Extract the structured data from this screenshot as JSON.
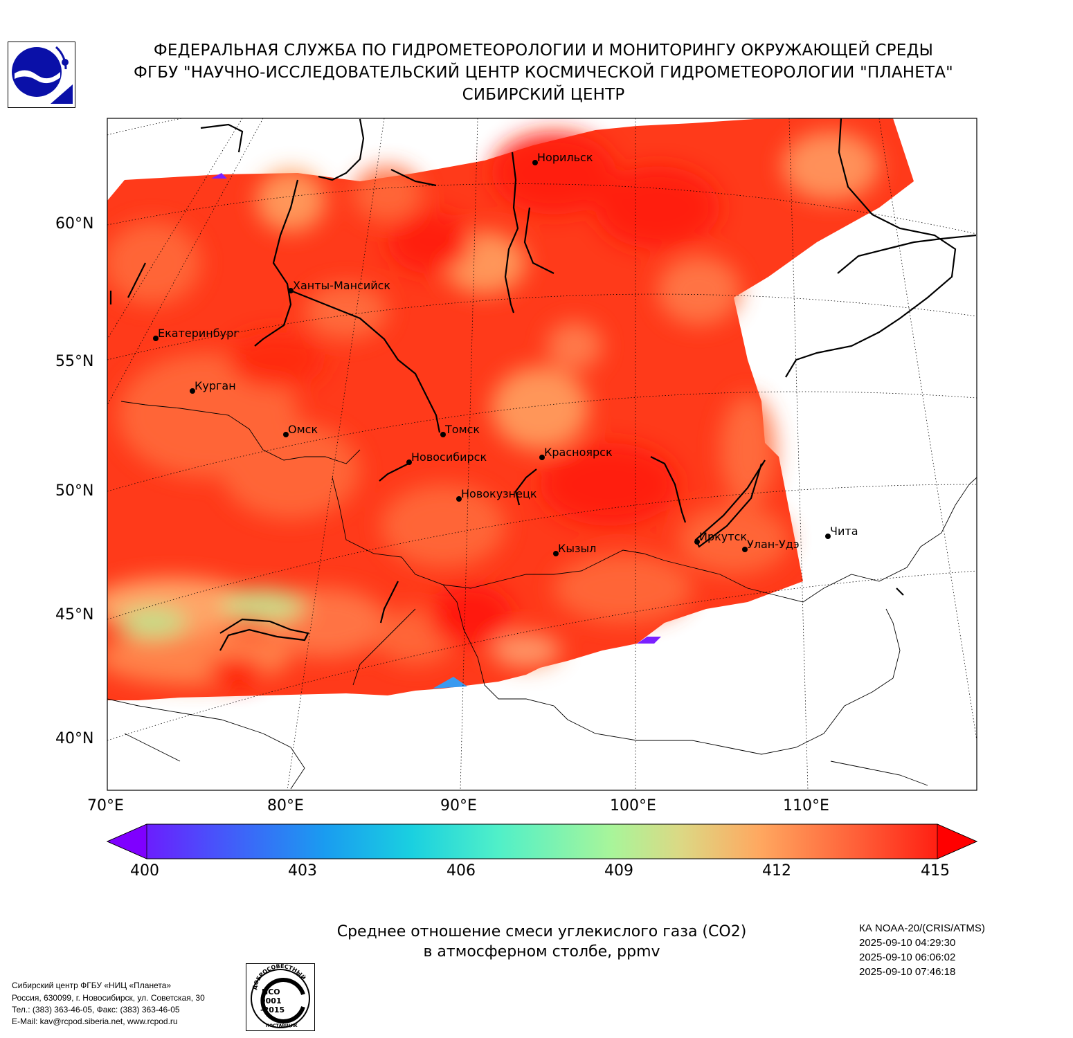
{
  "header": {
    "line1": "ФЕДЕРАЛЬНАЯ СЛУЖБА ПО ГИДРОМЕТЕОРОЛОГИИ И МОНИТОРИНГУ ОКРУЖАЮЩЕЙ СРЕДЫ",
    "line2": "ФГБУ \"НАУЧНО-ИССЛЕДОВАТЕЛЬСКИЙ ЦЕНТР КОСМИЧЕСКОЙ ГИДРОМЕТЕОРОЛОГИИ \"ПЛАНЕТА\"",
    "line3": "СИБИРСКИЙ ЦЕНТР"
  },
  "map": {
    "lat_labels": [
      "60°N",
      "55°N",
      "50°N",
      "45°N",
      "40°N"
    ],
    "lon_labels": [
      "70°E",
      "80°E",
      "90°E",
      "100°E",
      "110°E"
    ],
    "cities": [
      {
        "name": "Норильск"
      },
      {
        "name": "Ханты-Мансийск"
      },
      {
        "name": "Екатеринбург"
      },
      {
        "name": "Курган"
      },
      {
        "name": "Омск"
      },
      {
        "name": "Томск"
      },
      {
        "name": "Новосибирск"
      },
      {
        "name": "Красноярск"
      },
      {
        "name": "Новокузнецк"
      },
      {
        "name": "Кызыл"
      },
      {
        "name": "Иркутск"
      },
      {
        "name": "Улан-Удэ"
      },
      {
        "name": "Чита"
      }
    ]
  },
  "colorbar": {
    "ticks": [
      "400",
      "403",
      "406",
      "409",
      "412",
      "415"
    ],
    "min": 400,
    "max": 415,
    "colors": [
      "#7f00ff",
      "#3f5cfa",
      "#00b3e6",
      "#40f2c8",
      "#9ff79e",
      "#e0d57a",
      "#ffa45c",
      "#ff5a30",
      "#ff0000"
    ]
  },
  "caption": {
    "line1": "Среднее отношение смеси углекислого газа (CO2)",
    "line2": "в атмосферном столбе, ppmv"
  },
  "meta": {
    "satellite": "КА NOAA-20/(CRIS/ATMS)",
    "times": [
      "2025-09-10 04:29:30",
      "2025-09-10 06:06:02",
      "2025-09-10 07:46:18"
    ]
  },
  "footer": {
    "org": "Сибирский центр ФГБУ «НИЦ «Планета»",
    "address": "Россия, 630099, г. Новосибирск, ул. Советская, 30",
    "phone": "Тел.: (383) 363-46-05, Факс: (383) 363-46-05",
    "email": "E-Mail: kav@rcpod.siberia.net, www.rcpod.ru"
  },
  "badge": {
    "arc_text": "ДОБРОСОВЕСТНЫЙ",
    "iso": "ИСО",
    "number": "9001",
    "year": "-2015",
    "bottom_text": "ПОСТАВЩИК"
  }
}
